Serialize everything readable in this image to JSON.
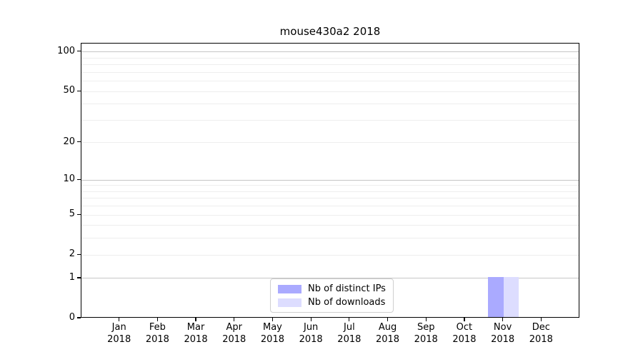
{
  "chart_data": {
    "type": "bar",
    "title": "mouse430a2 2018",
    "categories": [
      "Jan",
      "Feb",
      "Mar",
      "Apr",
      "May",
      "Jun",
      "Jul",
      "Aug",
      "Sep",
      "Oct",
      "Nov",
      "Dec"
    ],
    "category_year": "2018",
    "series": [
      {
        "name": "Nb of distinct IPs",
        "color": "#aaaaff",
        "values": [
          0,
          0,
          0,
          0,
          0,
          0,
          0,
          0,
          0,
          0,
          1,
          0
        ]
      },
      {
        "name": "Nb of downloads",
        "color": "#ddddff",
        "values": [
          0,
          0,
          0,
          0,
          0,
          0,
          0,
          0,
          0,
          0,
          1,
          0
        ]
      }
    ],
    "y_ticks": [
      0,
      1,
      2,
      5,
      10,
      20,
      50,
      100
    ],
    "y_scale": "log1p",
    "ylim": [
      0,
      116
    ],
    "grid": "horizontal major+minor log gridlines",
    "major_grid_values": [
      1,
      10,
      100
    ],
    "minor_grid_values": [
      2,
      3,
      4,
      5,
      6,
      7,
      8,
      9,
      20,
      30,
      40,
      50,
      60,
      70,
      80,
      90
    ],
    "legend_position": "lower center",
    "axis_color": "#000000",
    "major_grid_color": "#c6c6c6",
    "minor_grid_color": "#eeeeee"
  }
}
